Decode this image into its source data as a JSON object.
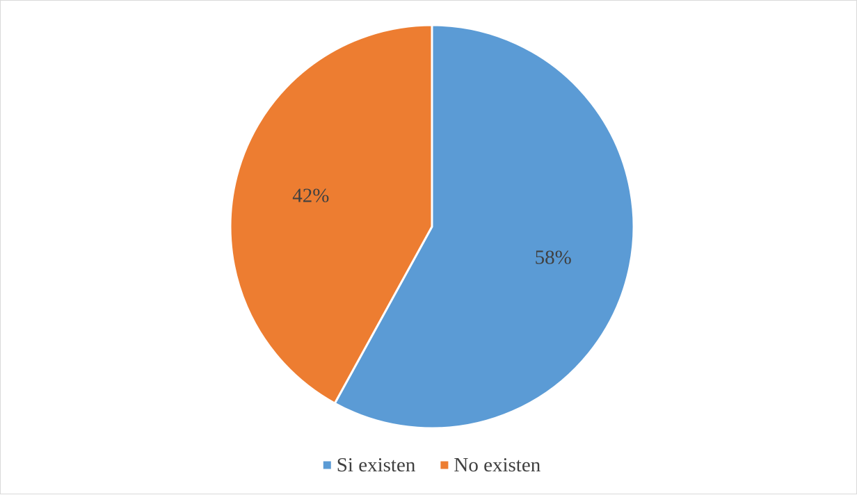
{
  "chart_data": {
    "type": "pie",
    "categories": [
      "Si existen",
      "No existen"
    ],
    "values": [
      58,
      42
    ],
    "value_labels": [
      "58%",
      "42%"
    ],
    "colors": [
      "#5b9bd5",
      "#ed7d31"
    ],
    "legend_position": "bottom",
    "start": "top, clockwise"
  }
}
